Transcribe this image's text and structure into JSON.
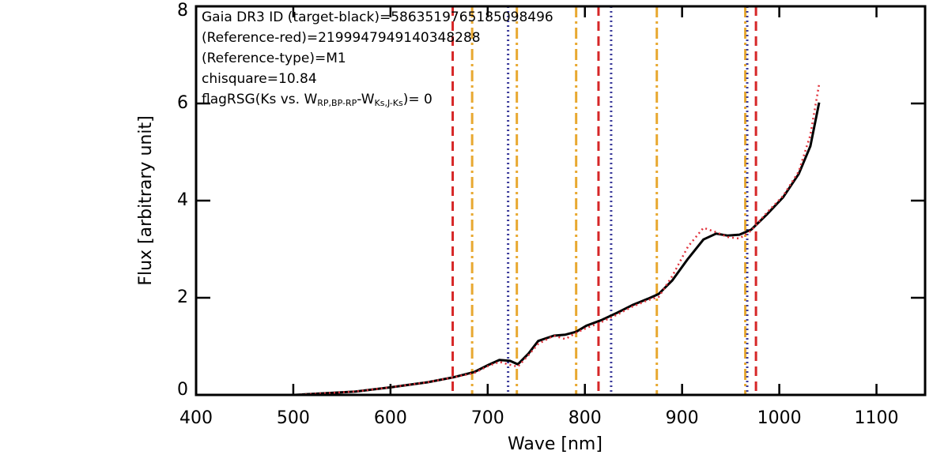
{
  "chart_data": {
    "type": "line",
    "xlabel": "Wave [nm]",
    "ylabel": "Flux [arbitrary unit]",
    "annotations": [
      {
        "text": "Gaia DR3 ID (target-black)=5863519765185098496"
      },
      {
        "text": "(Reference-red)=2199947949140348288"
      },
      {
        "text": "(Reference-type)=M1"
      },
      {
        "text": "chisquare=10.84"
      },
      {
        "parts": [
          "flagRSG(Ks vs. W",
          "RP,BP-RP",
          "-W",
          "Ks,J-Ks",
          ")= 0"
        ]
      }
    ],
    "x": [
      400,
      501,
      564,
      601,
      638,
      664,
      686,
      701,
      712,
      723,
      731,
      742,
      752,
      768,
      780,
      791,
      802,
      817,
      833,
      849,
      865,
      876,
      890,
      906,
      922,
      935,
      947,
      959,
      971,
      987,
      1004,
      1020,
      1032,
      1041
    ],
    "series": [
      {
        "color": "#000000",
        "style": "solid",
        "values": [
          0,
          0,
          0.07,
          0.16,
          0.26,
          0.36,
          0.47,
          0.62,
          0.72,
          0.7,
          0.63,
          0.85,
          1.11,
          1.22,
          1.24,
          1.3,
          1.43,
          1.54,
          1.69,
          1.85,
          1.98,
          2.08,
          2.36,
          2.8,
          3.2,
          3.32,
          3.28,
          3.3,
          3.4,
          3.71,
          4.07,
          4.55,
          5.12,
          6.02
        ]
      },
      {
        "color": "#e0303a",
        "style": "dotted",
        "values": [
          0,
          0,
          0.07,
          0.16,
          0.26,
          0.36,
          0.45,
          0.6,
          0.68,
          0.62,
          0.58,
          0.82,
          1.05,
          1.22,
          1.15,
          1.28,
          1.38,
          1.5,
          1.65,
          1.82,
          1.95,
          2.02,
          2.45,
          3.05,
          3.44,
          3.35,
          3.25,
          3.22,
          3.38,
          3.75,
          4.1,
          4.6,
          5.35,
          6.4
        ]
      }
    ],
    "vertical_lines": [
      {
        "color": "#d62728",
        "style": "dashed",
        "x": [
          664,
          814,
          976
        ]
      },
      {
        "color": "#e8a830",
        "style": "dashdot",
        "x": [
          684,
          730,
          791,
          874,
          965
        ]
      },
      {
        "color": "#3a3a9a",
        "style": "dotted",
        "x": [
          721,
          827,
          967
        ]
      }
    ],
    "xlim": [
      400,
      1150
    ],
    "xticks": [
      400,
      500,
      600,
      700,
      800,
      900,
      1000,
      1100
    ],
    "ylim": [
      0,
      8
    ],
    "yticks": [
      0,
      2,
      4,
      6,
      8
    ]
  }
}
